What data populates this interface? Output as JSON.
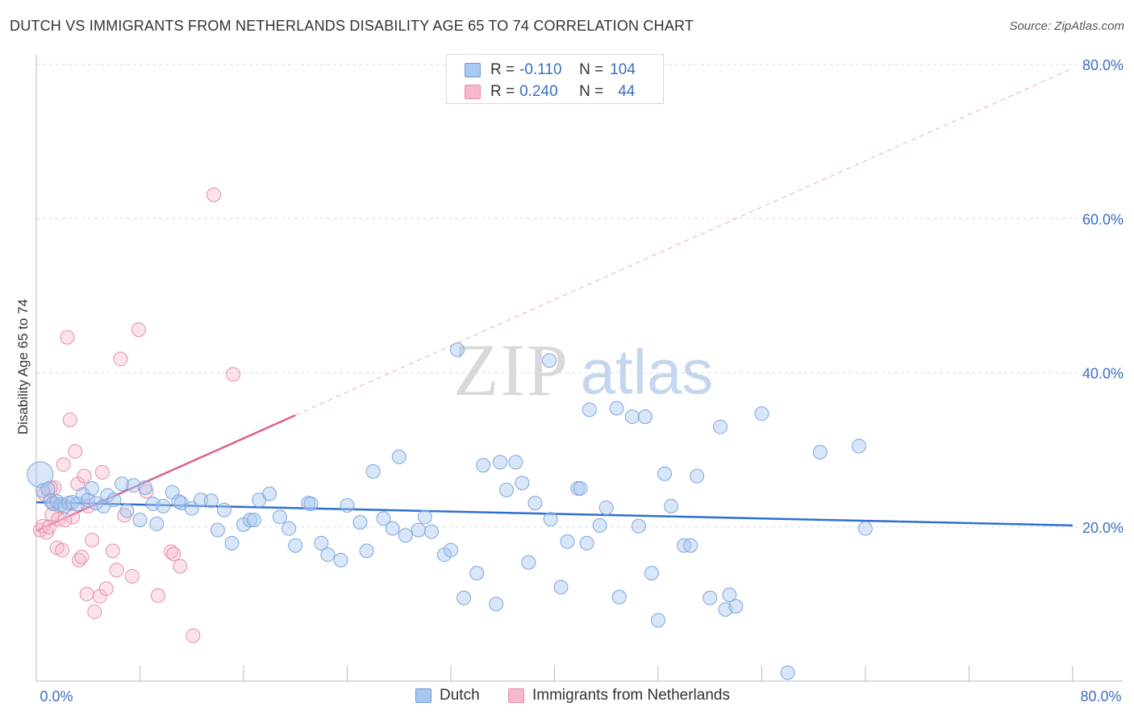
{
  "header": {
    "title": "DUTCH VS IMMIGRANTS FROM NETHERLANDS DISABILITY AGE 65 TO 74 CORRELATION CHART",
    "source": "Source: ZipAtlas.com"
  },
  "legend_top": {
    "rows": [
      {
        "r_label": "R =",
        "r_value": "-0.110",
        "n_label": "N =",
        "n_value": "104",
        "color": "#a9c8ef",
        "border": "#6f9ad8"
      },
      {
        "r_label": "R =",
        "r_value": "0.240",
        "n_label": "N =",
        "n_value": "44",
        "color": "#f6b9cc",
        "border": "#e78aa7"
      }
    ]
  },
  "legend_bottom": {
    "items": [
      {
        "label": "Dutch",
        "color": "#a9c8ef",
        "border": "#6f9ad8"
      },
      {
        "label": "Immigrants from Netherlands",
        "color": "#f6b9cc",
        "border": "#e78aa7"
      }
    ]
  },
  "watermark": {
    "zip": "ZIP",
    "atlas": "atlas"
  },
  "colors": {
    "dutch_fill": "rgba(169,200,239,0.45)",
    "dutch_stroke": "#7ea6dd",
    "dutch_line": "#2f6fce",
    "neth_fill": "rgba(246,185,204,0.40)",
    "neth_stroke": "#e88fab",
    "neth_line": "#e0608e",
    "tick_label": "#3b6fc4",
    "grid": "#dddddd",
    "axis": "#bbbbbb"
  },
  "chart_data": {
    "type": "scatter",
    "title": "DUTCH VS IMMIGRANTS FROM NETHERLANDS DISABILITY AGE 65 TO 74 CORRELATION CHART",
    "xlabel": "",
    "ylabel": "Disability Age 65 to 74",
    "xlim": [
      0,
      80
    ],
    "ylim": [
      0,
      80
    ],
    "x_tick_labels": [
      {
        "value": 0,
        "label": "0.0%"
      },
      {
        "value": 80,
        "label": "80.0%"
      }
    ],
    "y_tick_labels": [
      {
        "value": 20,
        "label": "20.0%"
      },
      {
        "value": 40,
        "label": "40.0%"
      },
      {
        "value": 60,
        "label": "60.0%"
      },
      {
        "value": 80,
        "label": "80.0%"
      }
    ],
    "grid": true,
    "legend_position": "top-center",
    "series": [
      {
        "name": "Dutch",
        "r": -0.11,
        "n": 104,
        "trend": {
          "x": [
            0,
            80
          ],
          "y": [
            23.2,
            20.2
          ]
        },
        "points": [
          [
            0.3,
            26.8
          ],
          [
            0.5,
            24.7
          ],
          [
            0.9,
            24.9
          ],
          [
            1.1,
            23.4
          ],
          [
            1.3,
            23.0
          ],
          [
            1.6,
            23.3
          ],
          [
            1.9,
            22.9
          ],
          [
            2.2,
            22.7
          ],
          [
            2.5,
            23.1
          ],
          [
            2.8,
            23.2
          ],
          [
            3.2,
            23.0
          ],
          [
            3.6,
            24.2
          ],
          [
            4.0,
            23.5
          ],
          [
            4.3,
            25.0
          ],
          [
            4.6,
            23.1
          ],
          [
            5.2,
            22.7
          ],
          [
            5.5,
            24.1
          ],
          [
            6.0,
            23.5
          ],
          [
            6.6,
            25.6
          ],
          [
            7.0,
            22.1
          ],
          [
            7.5,
            25.4
          ],
          [
            8.0,
            20.9
          ],
          [
            8.4,
            25.1
          ],
          [
            9.0,
            23.0
          ],
          [
            9.3,
            20.4
          ],
          [
            9.8,
            22.7
          ],
          [
            10.5,
            24.5
          ],
          [
            11.2,
            23.1
          ],
          [
            12.0,
            22.4
          ],
          [
            12.7,
            23.5
          ],
          [
            13.5,
            23.4
          ],
          [
            14.0,
            19.6
          ],
          [
            14.5,
            22.2
          ],
          [
            15.1,
            17.9
          ],
          [
            16.0,
            20.3
          ],
          [
            16.5,
            20.9
          ],
          [
            17.2,
            23.5
          ],
          [
            18.0,
            24.3
          ],
          [
            18.8,
            21.3
          ],
          [
            19.5,
            19.8
          ],
          [
            20.0,
            17.6
          ],
          [
            21.0,
            23.1
          ],
          [
            22.0,
            17.9
          ],
          [
            22.5,
            16.4
          ],
          [
            23.5,
            15.7
          ],
          [
            24.0,
            22.8
          ],
          [
            25.0,
            20.6
          ],
          [
            25.5,
            16.9
          ],
          [
            26.0,
            27.2
          ],
          [
            26.8,
            21.1
          ],
          [
            27.5,
            19.8
          ],
          [
            28.0,
            29.1
          ],
          [
            28.5,
            18.9
          ],
          [
            29.5,
            19.6
          ],
          [
            30.0,
            21.3
          ],
          [
            30.5,
            19.4
          ],
          [
            31.5,
            16.4
          ],
          [
            32.0,
            17.0
          ],
          [
            32.5,
            43.0
          ],
          [
            33.0,
            10.8
          ],
          [
            34.0,
            14.0
          ],
          [
            34.5,
            28.0
          ],
          [
            35.5,
            10.0
          ],
          [
            35.8,
            28.4
          ],
          [
            36.3,
            24.8
          ],
          [
            37.0,
            28.4
          ],
          [
            37.5,
            25.7
          ],
          [
            38.0,
            15.4
          ],
          [
            38.5,
            23.1
          ],
          [
            39.6,
            41.6
          ],
          [
            39.7,
            21.0
          ],
          [
            40.5,
            12.2
          ],
          [
            41.0,
            18.1
          ],
          [
            41.8,
            25.0
          ],
          [
            42.0,
            25.0
          ],
          [
            42.5,
            17.9
          ],
          [
            42.7,
            35.2
          ],
          [
            43.5,
            20.2
          ],
          [
            44.0,
            22.5
          ],
          [
            44.8,
            35.4
          ],
          [
            45.0,
            10.9
          ],
          [
            46.0,
            34.3
          ],
          [
            46.5,
            20.1
          ],
          [
            47.0,
            34.3
          ],
          [
            47.5,
            14.0
          ],
          [
            48.0,
            7.9
          ],
          [
            48.5,
            26.9
          ],
          [
            49.0,
            22.7
          ],
          [
            50.0,
            17.6
          ],
          [
            50.5,
            17.6
          ],
          [
            51.0,
            26.6
          ],
          [
            52.0,
            10.8
          ],
          [
            52.8,
            33.0
          ],
          [
            53.2,
            9.3
          ],
          [
            53.5,
            11.2
          ],
          [
            54.0,
            9.7
          ],
          [
            56.0,
            34.7
          ],
          [
            58.0,
            1.1
          ],
          [
            60.5,
            29.7
          ],
          [
            63.5,
            30.5
          ],
          [
            64.0,
            19.8
          ],
          [
            11.0,
            23.3
          ],
          [
            16.8,
            20.9
          ],
          [
            21.2,
            23.0
          ]
        ]
      },
      {
        "name": "Immigrants from Netherlands",
        "r": 0.24,
        "n": 44,
        "trend": {
          "x": [
            0,
            20
          ],
          "y": [
            19.5,
            34.5
          ]
        },
        "trend_extension": {
          "x": [
            0,
            80
          ],
          "y": [
            19.5,
            79.5
          ]
        },
        "points": [
          [
            0.3,
            19.6
          ],
          [
            0.5,
            20.1
          ],
          [
            0.6,
            24.3
          ],
          [
            0.8,
            19.3
          ],
          [
            1.0,
            20.0
          ],
          [
            1.2,
            21.6
          ],
          [
            1.3,
            23.1
          ],
          [
            1.4,
            25.1
          ],
          [
            1.6,
            17.3
          ],
          [
            1.7,
            21.0
          ],
          [
            1.8,
            22.7
          ],
          [
            2.0,
            17.0
          ],
          [
            2.1,
            28.1
          ],
          [
            2.4,
            44.6
          ],
          [
            2.6,
            33.9
          ],
          [
            2.8,
            21.3
          ],
          [
            3.0,
            29.8
          ],
          [
            3.2,
            25.6
          ],
          [
            3.3,
            15.7
          ],
          [
            3.5,
            16.1
          ],
          [
            3.7,
            26.6
          ],
          [
            3.9,
            11.3
          ],
          [
            4.0,
            22.7
          ],
          [
            4.3,
            18.3
          ],
          [
            4.5,
            9.0
          ],
          [
            4.9,
            11.0
          ],
          [
            5.1,
            27.1
          ],
          [
            5.4,
            12.0
          ],
          [
            5.9,
            16.9
          ],
          [
            6.2,
            14.4
          ],
          [
            6.5,
            41.8
          ],
          [
            6.8,
            21.5
          ],
          [
            7.4,
            13.6
          ],
          [
            7.9,
            45.6
          ],
          [
            8.5,
            24.6
          ],
          [
            9.4,
            11.1
          ],
          [
            10.4,
            16.8
          ],
          [
            10.6,
            16.5
          ],
          [
            11.1,
            14.9
          ],
          [
            12.1,
            5.9
          ],
          [
            13.7,
            63.1
          ],
          [
            15.2,
            39.8
          ],
          [
            1.1,
            25.1
          ],
          [
            2.2,
            20.9
          ]
        ]
      }
    ]
  }
}
